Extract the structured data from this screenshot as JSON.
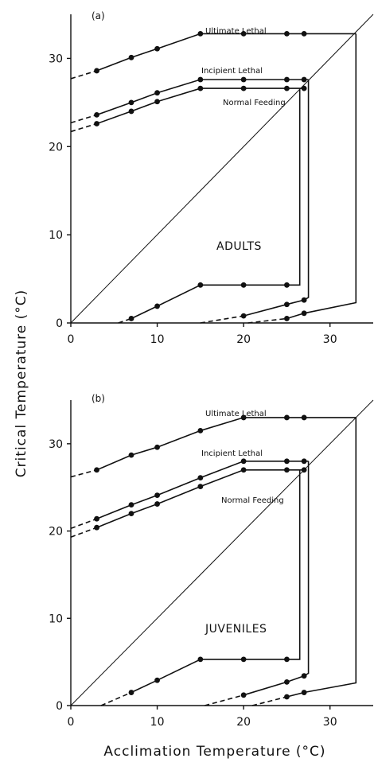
{
  "figure": {
    "xlabel": "Acclimation Temperature (°C)",
    "ylabel": "Critical Temperature (°C)"
  },
  "chart_data": [
    {
      "type": "line",
      "panel_label": "(a)",
      "group_label": "ADULTS",
      "xlim": [
        0,
        35
      ],
      "ylim": [
        0,
        35
      ],
      "xticks": [
        0,
        10,
        20,
        30
      ],
      "yticks": [
        0,
        10,
        20,
        30
      ],
      "curve_labels": [
        "Ultimate Lethal",
        "Incipient Lethal",
        "Normal Feeding"
      ],
      "curves": [
        {
          "name": "Ultimate Lethal",
          "points": [
            [
              3,
              28.6
            ],
            [
              7,
              30.1
            ],
            [
              10,
              31.1
            ],
            [
              15,
              32.8
            ],
            [
              20,
              32.8
            ],
            [
              25,
              32.8
            ],
            [
              27,
              32.8
            ]
          ],
          "dashed_start": [
            0,
            27.7
          ],
          "solid_end": [
            [
              33,
              32.8
            ]
          ]
        },
        {
          "name": "Incipient Lethal",
          "points": [
            [
              3,
              23.6
            ],
            [
              7,
              25
            ],
            [
              10,
              26.1
            ],
            [
              15,
              27.6
            ],
            [
              20,
              27.6
            ],
            [
              25,
              27.6
            ],
            [
              27,
              27.6
            ]
          ],
          "dashed_start": [
            0,
            22.7
          ],
          "solid_end": [
            [
              27.5,
              27.6
            ]
          ]
        },
        {
          "name": "Normal Feeding",
          "points": [
            [
              3,
              22.6
            ],
            [
              7,
              24
            ],
            [
              10,
              25.1
            ],
            [
              15,
              26.6
            ],
            [
              20,
              26.6
            ],
            [
              25,
              26.6
            ],
            [
              27,
              26.6
            ]
          ],
          "dashed_start": [
            0,
            21.7
          ],
          "solid_end": [
            [
              26.5,
              26.6
            ]
          ]
        },
        {
          "name": "lower-feeding",
          "points": [
            [
              7,
              0.5
            ],
            [
              10,
              1.9
            ],
            [
              15,
              4.3
            ],
            [
              20,
              4.3
            ],
            [
              25,
              4.3
            ]
          ],
          "dashed_start": [
            5.5,
            0
          ],
          "solid_end": [
            [
              26.5,
              4.3
            ],
            [
              26.5,
              26.6
            ]
          ]
        },
        {
          "name": "lower-incipient",
          "points": [
            [
              20,
              0.8
            ],
            [
              25,
              2.1
            ],
            [
              27,
              2.6
            ]
          ],
          "dashed_start": [
            15,
            0
          ],
          "solid_end": [
            [
              27.5,
              2.9
            ],
            [
              27.5,
              27.6
            ]
          ]
        },
        {
          "name": "lower-ultimate",
          "points": [
            [
              25,
              0.5
            ],
            [
              27,
              1.1
            ]
          ],
          "dashed_start": [
            20.5,
            0
          ],
          "solid_end": [
            [
              33,
              2.3
            ],
            [
              33,
              32.8
            ]
          ]
        }
      ],
      "diagonal": [
        [
          0,
          0
        ],
        [
          35,
          35
        ]
      ]
    },
    {
      "type": "line",
      "panel_label": "(b)",
      "group_label": "JUVENILES",
      "xlim": [
        0,
        35
      ],
      "ylim": [
        0,
        35
      ],
      "xticks": [
        0,
        10,
        20,
        30
      ],
      "yticks": [
        0,
        10,
        20,
        30
      ],
      "curve_labels": [
        "Ultimate Lethal",
        "Incipient Lethal",
        "Normal Feeding"
      ],
      "curves": [
        {
          "name": "Ultimate Lethal",
          "points": [
            [
              3,
              27
            ],
            [
              7,
              28.7
            ],
            [
              10,
              29.6
            ],
            [
              15,
              31.5
            ],
            [
              20,
              33
            ],
            [
              25,
              33
            ],
            [
              27,
              33
            ]
          ],
          "dashed_start": [
            0,
            26.2
          ],
          "solid_end": [
            [
              33,
              33
            ]
          ]
        },
        {
          "name": "Incipient Lethal",
          "points": [
            [
              3,
              21.4
            ],
            [
              7,
              23
            ],
            [
              10,
              24.1
            ],
            [
              15,
              26.1
            ],
            [
              20,
              28
            ],
            [
              25,
              28
            ],
            [
              27,
              28
            ]
          ],
          "dashed_start": [
            0,
            20.3
          ],
          "solid_end": [
            [
              27.5,
              28
            ]
          ]
        },
        {
          "name": "Normal Feeding",
          "points": [
            [
              3,
              20.4
            ],
            [
              7,
              22
            ],
            [
              10,
              23.1
            ],
            [
              15,
              25.1
            ],
            [
              20,
              27
            ],
            [
              25,
              27
            ],
            [
              27,
              27
            ]
          ],
          "dashed_start": [
            0,
            19.3
          ],
          "solid_end": [
            [
              26.5,
              27
            ]
          ]
        },
        {
          "name": "lower-feeding",
          "points": [
            [
              7,
              1.5
            ],
            [
              10,
              2.9
            ],
            [
              15,
              5.3
            ],
            [
              20,
              5.3
            ],
            [
              25,
              5.3
            ]
          ],
          "dashed_start": [
            3.5,
            0
          ],
          "solid_end": [
            [
              26.5,
              5.3
            ],
            [
              26.5,
              27
            ]
          ]
        },
        {
          "name": "lower-incipient",
          "points": [
            [
              20,
              1.2
            ],
            [
              25,
              2.7
            ],
            [
              27,
              3.4
            ]
          ],
          "dashed_start": [
            15.5,
            0
          ],
          "solid_end": [
            [
              27.5,
              3.7
            ],
            [
              27.5,
              28
            ]
          ]
        },
        {
          "name": "lower-ultimate",
          "points": [
            [
              25,
              1
            ],
            [
              27,
              1.5
            ]
          ],
          "dashed_start": [
            21,
            0
          ],
          "solid_end": [
            [
              33,
              2.6
            ],
            [
              33,
              33
            ]
          ]
        }
      ],
      "diagonal": [
        [
          0,
          0
        ],
        [
          35,
          35
        ]
      ]
    }
  ]
}
